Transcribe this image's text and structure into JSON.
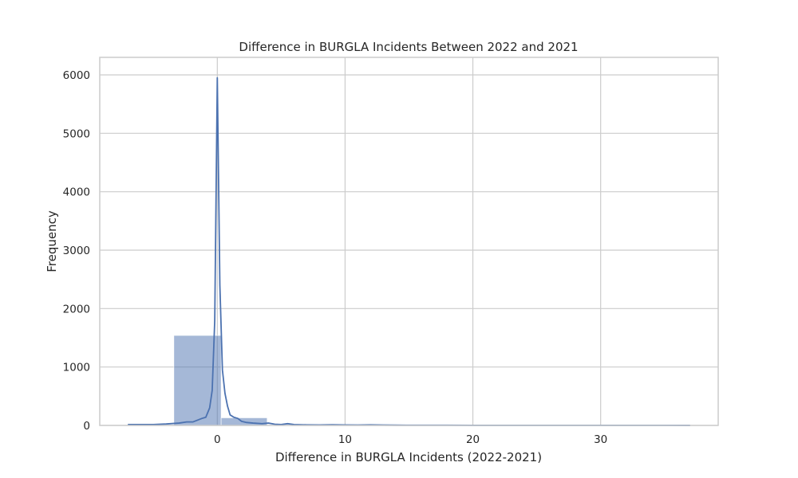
{
  "chart_data": {
    "type": "bar",
    "subtype": "histogram-with-kde",
    "title": "Difference in BURGLA Incidents Between 2022 and 2021",
    "xlabel": "Difference in BURGLA Incidents (2022-2021)",
    "ylabel": "Frequency",
    "xlim": [
      -9.2,
      39.2
    ],
    "ylim": [
      0,
      6300
    ],
    "xticks": [
      0,
      10,
      20,
      30
    ],
    "yticks": [
      0,
      1000,
      2000,
      3000,
      4000,
      5000,
      6000
    ],
    "grid": true,
    "colors": {
      "series": "#4c72b0",
      "grid": "#cccccc"
    },
    "bins": [
      {
        "x0": -7.0,
        "x1": -3.4,
        "count": 5
      },
      {
        "x0": -3.4,
        "x1": 0.3,
        "count": 1540
      },
      {
        "x0": 0.3,
        "x1": 3.9,
        "count": 130
      },
      {
        "x0": 3.9,
        "x1": 7.5,
        "count": 10
      },
      {
        "x0": 7.5,
        "x1": 11.2,
        "count": 5
      },
      {
        "x0": 11.2,
        "x1": 14.8,
        "count": 3
      },
      {
        "x0": 14.8,
        "x1": 18.4,
        "count": 1
      },
      {
        "x0": 18.4,
        "x1": 22.1,
        "count": 0
      },
      {
        "x0": 22.1,
        "x1": 25.7,
        "count": 0
      },
      {
        "x0": 25.7,
        "x1": 29.3,
        "count": 1
      },
      {
        "x0": 29.3,
        "x1": 33.0,
        "count": 0
      },
      {
        "x0": 33.0,
        "x1": 36.6,
        "count": 1
      }
    ],
    "kde": {
      "x": [
        -7.0,
        -5.0,
        -4.0,
        -3.0,
        -2.4,
        -1.9,
        -1.5,
        -1.2,
        -0.9,
        -0.6,
        -0.4,
        -0.2,
        0.0,
        0.2,
        0.4,
        0.6,
        0.8,
        1.0,
        1.3,
        1.6,
        1.9,
        2.3,
        2.8,
        3.5,
        4.0,
        4.5,
        5.0,
        5.5,
        6.0,
        7.0,
        8.0,
        9.0,
        10.0,
        11.0,
        12.0,
        13.0,
        14.0,
        15.0,
        18.0,
        20.0,
        25.0,
        30.0,
        35.0,
        37.0
      ],
      "y": [
        15,
        15,
        25,
        40,
        60,
        60,
        95,
        120,
        140,
        300,
        600,
        1800,
        5950,
        2400,
        950,
        550,
        330,
        180,
        140,
        120,
        70,
        50,
        40,
        30,
        40,
        20,
        15,
        30,
        15,
        10,
        8,
        12,
        8,
        6,
        10,
        6,
        4,
        3,
        3,
        2,
        2,
        2,
        2,
        1
      ]
    }
  }
}
